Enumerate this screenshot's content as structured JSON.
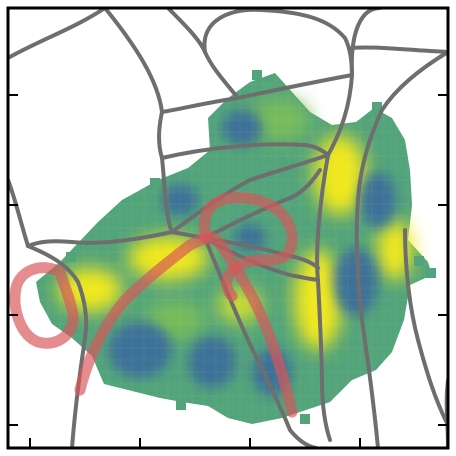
{
  "map": {
    "colors": {
      "background": "#ffffff",
      "frame": "#000000",
      "outline": "#6e6e6e",
      "trace": "#d9555a",
      "field": "#53a47a",
      "field_blue": "#3d7198",
      "field_light": "#78bb5a",
      "field_yellow": "#f0e81e",
      "field_lime": "#c8dc31"
    },
    "ticks_x": 4,
    "ticks_y": 4,
    "regions": 16,
    "traces": 3
  }
}
